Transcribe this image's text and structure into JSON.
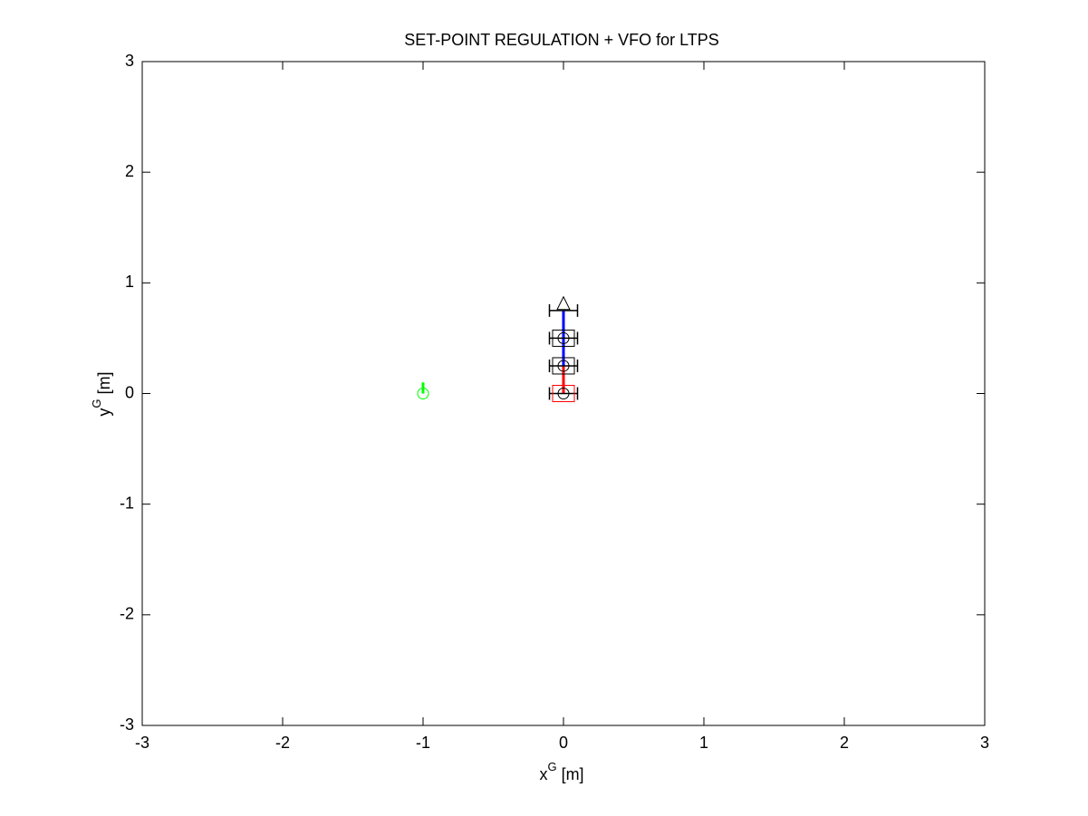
{
  "chart_data": {
    "type": "scatter",
    "title": "SET-POINT REGULATION + VFO for LTPS",
    "xlabel": {
      "base": "x",
      "sup": "G",
      "unit": " [m]"
    },
    "ylabel": {
      "base": "y",
      "sup": "G",
      "unit": " [m]"
    },
    "xlim": [
      -3,
      3
    ],
    "ylim": [
      -3,
      3
    ],
    "xticks": [
      -3,
      -2,
      -1,
      0,
      1,
      2,
      3
    ],
    "yticks": [
      -3,
      -2,
      -1,
      0,
      1,
      2,
      3
    ],
    "grid": false,
    "box": true,
    "series": [
      {
        "color": "#00ff00",
        "marker": "circle",
        "x": [
          -1
        ],
        "y": [
          0
        ]
      },
      {
        "color": "#00ff00",
        "marker": "line",
        "width": 3,
        "x": [
          -1,
          -1
        ],
        "y": [
          0,
          0.1
        ]
      },
      {
        "color": "#ff0000",
        "marker": "line",
        "width": 3,
        "x": [
          0,
          0
        ],
        "y": [
          0,
          0.25
        ]
      },
      {
        "color": "#0000ff",
        "marker": "line",
        "width": 3,
        "x": [
          0,
          0
        ],
        "y": [
          0.25,
          0.75
        ]
      },
      {
        "color": "#000000",
        "marker": "axle",
        "x": [
          -0.1,
          0.1
        ],
        "y": [
          0,
          0
        ]
      },
      {
        "color": "#000000",
        "marker": "axle",
        "x": [
          -0.1,
          0.1
        ],
        "y": [
          0.25,
          0.25
        ]
      },
      {
        "color": "#000000",
        "marker": "axle",
        "x": [
          -0.1,
          0.1
        ],
        "y": [
          0.5,
          0.5
        ]
      },
      {
        "color": "#000000",
        "marker": "axle",
        "x": [
          -0.1,
          0.1
        ],
        "y": [
          0.75,
          0.75
        ]
      },
      {
        "color": "#ff0000",
        "marker": "square",
        "x": [
          0
        ],
        "y": [
          0
        ]
      },
      {
        "color": "#000000",
        "marker": "square",
        "x": [
          0,
          0
        ],
        "y": [
          0.25,
          0.5
        ]
      },
      {
        "color": "#000000",
        "marker": "circle",
        "x": [
          0,
          0,
          0
        ],
        "y": [
          0,
          0.25,
          0.5
        ]
      },
      {
        "color": "#000000",
        "marker": "triangle",
        "x": [
          0
        ],
        "y": [
          0.8
        ]
      }
    ]
  }
}
